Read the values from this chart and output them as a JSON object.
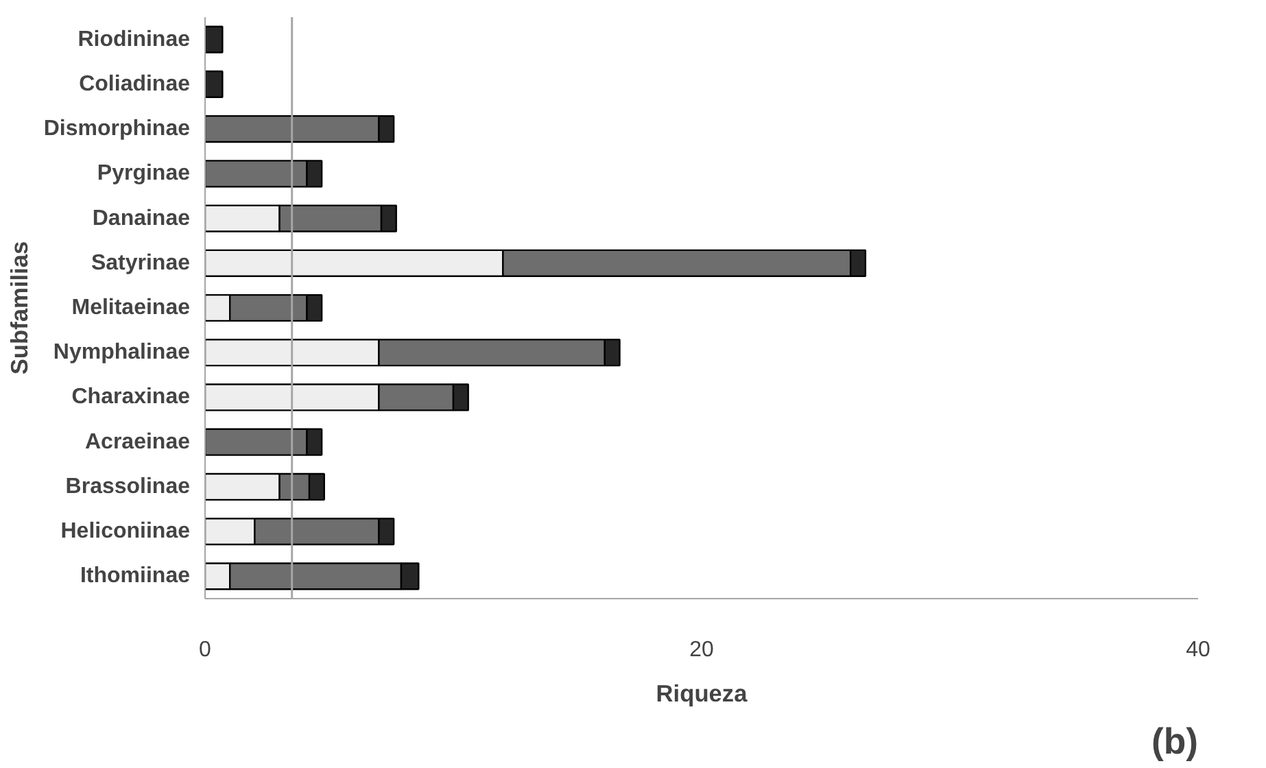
{
  "chart_data": {
    "type": "bar",
    "orientation": "horizontal",
    "stacked": true,
    "xlabel": "Riqueza",
    "ylabel": "Subfamilias",
    "annotations": [
      "(b)"
    ],
    "categories": [
      "Riodininae",
      "Coliadinae",
      "Dismorphinae",
      "Pyrginae",
      "Danainae",
      "Satyrinae",
      "Melitaeinae",
      "Nymphalinae",
      "Charaxinae",
      "Acraeinae",
      "Brassolinae",
      "Heliconiinae",
      "Ithomiinae"
    ],
    "series": [
      {
        "color": "#eeeeee",
        "values": [
          0,
          0,
          0,
          0,
          3.0,
          12.0,
          1.0,
          7.0,
          7.0,
          0,
          3.0,
          2.0,
          1.0
        ]
      },
      {
        "color": "#6e6e6e",
        "values": [
          0,
          0,
          7.0,
          4.1,
          4.1,
          14.0,
          3.1,
          9.1,
          3.0,
          4.1,
          1.2,
          5.0,
          6.9
        ]
      },
      {
        "color": "#262626",
        "values": [
          0.7,
          0.7,
          0.6,
          0.6,
          0.6,
          0.6,
          0.6,
          0.6,
          0.6,
          0.6,
          0.6,
          0.6,
          0.7
        ]
      }
    ],
    "xlim": [
      0,
      40
    ],
    "xticks": [
      0,
      20,
      40
    ],
    "grid": false,
    "ref_lines": [
      {
        "axis": "x",
        "value": 3.5,
        "color": "#a6a6a6"
      }
    ]
  }
}
